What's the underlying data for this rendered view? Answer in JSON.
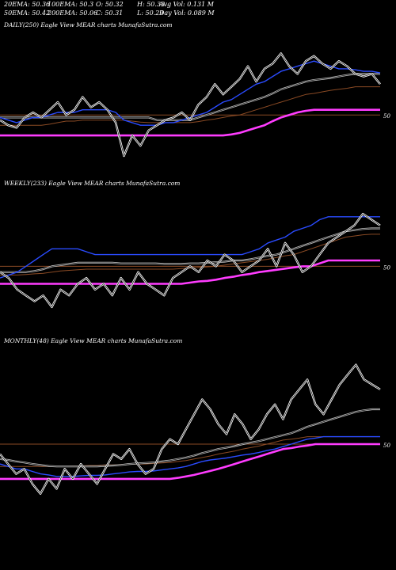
{
  "header": {
    "row1": [
      "20EMA: 50.36",
      "100EMA: 50.3",
      "O: 50.32",
      "H: 50.33",
      "Avg Vol: 0.131 M"
    ],
    "row2": [
      "50EMA: 50.42",
      "200EMA: 50.06",
      "C: 50.31",
      "L: 50.29",
      "Day Vol: 0.089 M"
    ]
  },
  "colors": {
    "price": "#ffffff",
    "ema_blue": "#2a4bff",
    "ema_gray": "#bdbdbd",
    "ema_brown": "#8a4a24",
    "ema_magenta": "#ff3cff",
    "background": "#000000"
  },
  "chart_data": [
    {
      "type": "line",
      "title": "DAILY(250) Eagle  View  MEAR charts MunafaSutra.com",
      "axis_label": "50",
      "series": [
        {
          "values": [
            49.9,
            49.8,
            49.75,
            49.95,
            50.05,
            49.95,
            50.1,
            50.25,
            50.0,
            50.1,
            50.35,
            50.15,
            50.25,
            50.1,
            49.85,
            49.2,
            49.6,
            49.4,
            49.7,
            49.8,
            49.9,
            49.95,
            50.05,
            49.9,
            50.2,
            50.35,
            50.6,
            50.4,
            50.55,
            50.7,
            50.95,
            50.65,
            50.9,
            51.0,
            51.2,
            50.95,
            50.8,
            51.05,
            51.15,
            51.0,
            50.9,
            51.05,
            50.95,
            50.8,
            50.75,
            50.8,
            50.6
          ]
        },
        {
          "values": [
            49.95,
            49.9,
            49.85,
            49.9,
            49.95,
            49.95,
            50.0,
            50.05,
            50.05,
            50.05,
            50.1,
            50.1,
            50.1,
            50.1,
            50.05,
            49.9,
            49.85,
            49.8,
            49.8,
            49.8,
            49.85,
            49.85,
            49.9,
            49.95,
            50.0,
            50.05,
            50.15,
            50.25,
            50.3,
            50.4,
            50.5,
            50.6,
            50.65,
            50.75,
            50.85,
            50.9,
            50.95,
            51.0,
            51.05,
            51.0,
            50.95,
            50.9,
            50.9,
            50.88,
            50.85,
            50.85,
            50.82
          ]
        },
        {
          "values": [
            49.95,
            49.95,
            49.95,
            49.95,
            49.95,
            49.95,
            49.95,
            49.95,
            49.95,
            49.95,
            49.95,
            49.95,
            49.95,
            49.95,
            49.95,
            49.95,
            49.95,
            49.95,
            49.95,
            49.9,
            49.9,
            49.9,
            49.9,
            49.9,
            49.95,
            50.0,
            50.05,
            50.1,
            50.15,
            50.2,
            50.25,
            50.3,
            50.35,
            50.42,
            50.5,
            50.55,
            50.6,
            50.65,
            50.68,
            50.7,
            50.72,
            50.75,
            50.78,
            50.8,
            50.8,
            50.8,
            50.8
          ]
        },
        {
          "values": [
            49.8,
            49.8,
            49.8,
            49.8,
            49.8,
            49.8,
            49.82,
            49.85,
            49.88,
            49.88,
            49.9,
            49.9,
            49.9,
            49.9,
            49.9,
            49.9,
            49.88,
            49.86,
            49.85,
            49.85,
            49.85,
            49.85,
            49.85,
            49.85,
            49.87,
            49.9,
            49.92,
            49.95,
            49.98,
            50.0,
            50.05,
            50.1,
            50.15,
            50.2,
            50.25,
            50.3,
            50.35,
            50.4,
            50.42,
            50.45,
            50.48,
            50.5,
            50.52,
            50.55,
            50.55,
            50.55,
            50.55
          ]
        },
        {
          "values": [
            49.6,
            49.6,
            49.6,
            49.6,
            49.6,
            49.6,
            49.6,
            49.6,
            49.6,
            49.6,
            49.6,
            49.6,
            49.6,
            49.6,
            49.6,
            49.6,
            49.6,
            49.6,
            49.6,
            49.6,
            49.6,
            49.6,
            49.6,
            49.6,
            49.6,
            49.6,
            49.6,
            49.6,
            49.62,
            49.65,
            49.7,
            49.75,
            49.8,
            49.88,
            49.95,
            50.0,
            50.05,
            50.08,
            50.1,
            50.1,
            50.1,
            50.1,
            50.1,
            50.1,
            50.1,
            50.1,
            50.1
          ]
        }
      ],
      "ylim": [
        49.0,
        51.5
      ]
    },
    {
      "type": "line",
      "title": "WEEKLY(233) Eagle  View  MEAR charts MunafaSutra.com",
      "axis_label": "50",
      "series": [
        {
          "values": [
            49.9,
            49.8,
            49.6,
            49.5,
            49.4,
            49.5,
            49.3,
            49.6,
            49.5,
            49.7,
            49.8,
            49.6,
            49.7,
            49.5,
            49.8,
            49.6,
            49.9,
            49.7,
            49.6,
            49.5,
            49.8,
            49.9,
            50.0,
            49.9,
            50.1,
            50.0,
            50.2,
            50.1,
            49.9,
            50.0,
            50.1,
            50.3,
            50.0,
            50.4,
            50.2,
            49.9,
            50.0,
            50.2,
            50.4,
            50.5,
            50.6,
            50.7,
            50.9,
            50.8,
            50.7
          ]
        },
        {
          "values": [
            49.8,
            49.85,
            49.9,
            50.0,
            50.1,
            50.2,
            50.3,
            50.3,
            50.3,
            50.3,
            50.25,
            50.2,
            50.2,
            50.2,
            50.2,
            50.2,
            50.2,
            50.2,
            50.2,
            50.2,
            50.2,
            50.2,
            50.2,
            50.2,
            50.2,
            50.2,
            50.2,
            50.2,
            50.2,
            50.25,
            50.3,
            50.4,
            50.45,
            50.5,
            50.6,
            50.65,
            50.7,
            50.8,
            50.85,
            50.85,
            50.85,
            50.85,
            50.85,
            50.85,
            50.85
          ]
        },
        {
          "values": [
            49.9,
            49.9,
            49.9,
            49.9,
            49.92,
            49.95,
            50.0,
            50.02,
            50.04,
            50.06,
            50.06,
            50.06,
            50.06,
            50.06,
            50.05,
            50.05,
            50.05,
            50.05,
            50.05,
            50.04,
            50.04,
            50.04,
            50.05,
            50.05,
            50.06,
            50.07,
            50.08,
            50.1,
            50.1,
            50.12,
            50.15,
            50.18,
            50.2,
            50.25,
            50.3,
            50.35,
            50.4,
            50.45,
            50.5,
            50.55,
            50.6,
            50.62,
            50.64,
            50.65,
            50.65
          ]
        },
        {
          "values": [
            49.85,
            49.85,
            49.85,
            49.86,
            49.87,
            49.88,
            49.9,
            49.92,
            49.93,
            49.94,
            49.95,
            49.95,
            49.95,
            49.95,
            49.95,
            49.95,
            49.95,
            49.95,
            49.95,
            49.95,
            49.95,
            49.96,
            49.97,
            49.98,
            49.99,
            50.0,
            50.02,
            50.04,
            50.06,
            50.08,
            50.1,
            50.12,
            50.15,
            50.18,
            50.2,
            50.25,
            50.3,
            50.35,
            50.4,
            50.45,
            50.5,
            50.52,
            50.54,
            50.55,
            50.55
          ]
        },
        {
          "values": [
            49.7,
            49.7,
            49.7,
            49.7,
            49.7,
            49.7,
            49.7,
            49.7,
            49.7,
            49.7,
            49.7,
            49.7,
            49.7,
            49.7,
            49.7,
            49.7,
            49.7,
            49.7,
            49.7,
            49.7,
            49.7,
            49.7,
            49.72,
            49.74,
            49.75,
            49.77,
            49.8,
            49.82,
            49.85,
            49.87,
            49.9,
            49.92,
            49.94,
            49.96,
            49.98,
            50.0,
            50.0,
            50.05,
            50.1,
            50.1,
            50.1,
            50.1,
            50.1,
            50.1,
            50.1
          ]
        }
      ],
      "ylim": [
        49.0,
        51.2
      ]
    },
    {
      "type": "line",
      "title": "MONTHLY(48) Eagle  View  MEAR charts MunafaSutra.com",
      "axis_label": "50",
      "series": [
        {
          "values": [
            49.8,
            49.6,
            49.4,
            49.5,
            49.2,
            49.0,
            49.3,
            49.1,
            49.5,
            49.3,
            49.6,
            49.4,
            49.2,
            49.5,
            49.8,
            49.7,
            49.9,
            49.6,
            49.4,
            49.5,
            49.9,
            50.1,
            50.0,
            50.3,
            50.6,
            50.9,
            50.7,
            50.4,
            50.2,
            50.6,
            50.4,
            50.1,
            50.3,
            50.6,
            50.8,
            50.5,
            50.9,
            51.1,
            51.3,
            50.8,
            50.6,
            50.9,
            51.2,
            51.4,
            51.6,
            51.3,
            51.2,
            51.1
          ]
        },
        {
          "values": [
            49.6,
            49.55,
            49.5,
            49.5,
            49.45,
            49.4,
            49.38,
            49.35,
            49.35,
            49.35,
            49.36,
            49.37,
            49.37,
            49.38,
            49.4,
            49.42,
            49.44,
            49.45,
            49.45,
            49.46,
            49.48,
            49.5,
            49.52,
            49.55,
            49.6,
            49.65,
            49.68,
            49.7,
            49.72,
            49.75,
            49.78,
            49.8,
            49.83,
            49.87,
            49.9,
            49.95,
            50.0,
            50.05,
            50.1,
            50.12,
            50.15,
            50.15,
            50.15,
            50.15,
            50.15,
            50.15,
            50.15,
            50.15
          ]
        },
        {
          "values": [
            49.7,
            49.68,
            49.65,
            49.63,
            49.6,
            49.58,
            49.56,
            49.55,
            49.55,
            49.55,
            49.55,
            49.55,
            49.55,
            49.56,
            49.57,
            49.58,
            49.6,
            49.61,
            49.62,
            49.63,
            49.65,
            49.67,
            49.7,
            49.73,
            49.77,
            49.82,
            49.86,
            49.9,
            49.93,
            49.96,
            50.0,
            50.03,
            50.06,
            50.1,
            50.14,
            50.18,
            50.22,
            50.28,
            50.35,
            50.4,
            50.45,
            50.5,
            50.55,
            50.6,
            50.65,
            50.68,
            50.7,
            50.7
          ]
        },
        {
          "values": [
            49.55,
            49.55,
            49.55,
            49.55,
            49.55,
            49.55,
            49.55,
            49.55,
            49.55,
            49.56,
            49.56,
            49.57,
            49.57,
            49.58,
            49.58,
            49.59,
            49.6,
            49.6,
            49.6,
            49.61,
            49.62,
            49.63,
            49.65,
            49.67,
            49.7,
            49.73,
            49.76,
            49.8,
            49.83,
            49.86,
            49.9,
            49.93,
            49.96,
            50.0,
            50.04,
            50.08,
            50.1,
            50.12,
            50.15,
            50.15,
            50.15,
            50.15,
            50.15,
            50.15,
            50.15,
            50.15,
            50.15,
            50.15
          ]
        },
        {
          "values": [
            49.3,
            49.3,
            49.3,
            49.3,
            49.3,
            49.3,
            49.3,
            49.3,
            49.3,
            49.3,
            49.3,
            49.3,
            49.3,
            49.3,
            49.3,
            49.3,
            49.3,
            49.3,
            49.3,
            49.3,
            49.3,
            49.3,
            49.32,
            49.35,
            49.38,
            49.42,
            49.46,
            49.5,
            49.55,
            49.6,
            49.65,
            49.7,
            49.75,
            49.8,
            49.85,
            49.9,
            49.92,
            49.95,
            49.97,
            50.0,
            50.0,
            50.0,
            50.0,
            50.0,
            50.0,
            50.0,
            50.0,
            50.0
          ]
        }
      ],
      "ylim": [
        48.9,
        51.8
      ]
    }
  ]
}
